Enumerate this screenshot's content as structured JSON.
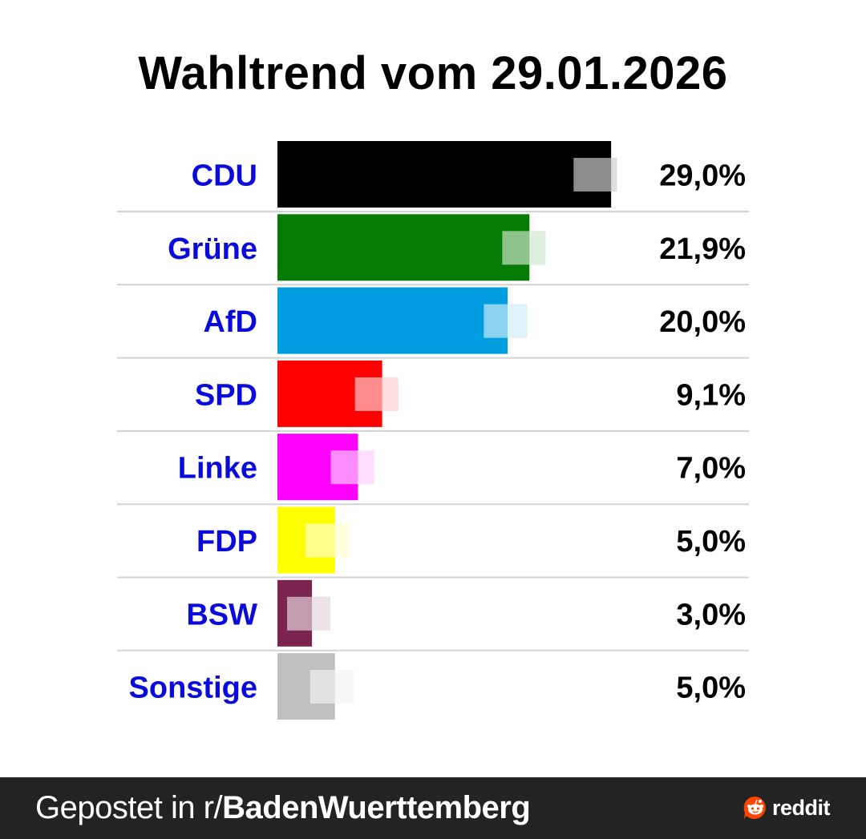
{
  "chart_data": {
    "type": "bar",
    "orientation": "horizontal",
    "title": "Wahltrend vom 29.01.2026",
    "categories": [
      "CDU",
      "Grüne",
      "AfD",
      "SPD",
      "Linke",
      "FDP",
      "BSW",
      "Sonstige"
    ],
    "values": [
      29.0,
      21.9,
      20.0,
      9.1,
      7.0,
      5.0,
      3.0,
      5.0
    ],
    "value_labels": [
      "29,0%",
      "21,9%",
      "20,0%",
      "9,1%",
      "7,0%",
      "5,0%",
      "3,0%",
      "5,0%"
    ],
    "colors": [
      "#000000",
      "#047c04",
      "#009ee0",
      "#ff0000",
      "#ff00ff",
      "#ffff00",
      "#7b2450",
      "#c0c0c0"
    ],
    "previous_marker_values": [
      29.5,
      23.3,
      21.7,
      10.5,
      8.4,
      6.2,
      4.6,
      6.6
    ],
    "xlabel": "",
    "ylabel": "",
    "unit": "%",
    "label_color": "#0a0adc",
    "grid": false,
    "separator_color": "#d3d3d3"
  },
  "footer": {
    "prefix": "Gepostet in r/",
    "subreddit": "BadenWuerttemberg",
    "brand": "reddit",
    "brand_color": "#ff4500"
  }
}
